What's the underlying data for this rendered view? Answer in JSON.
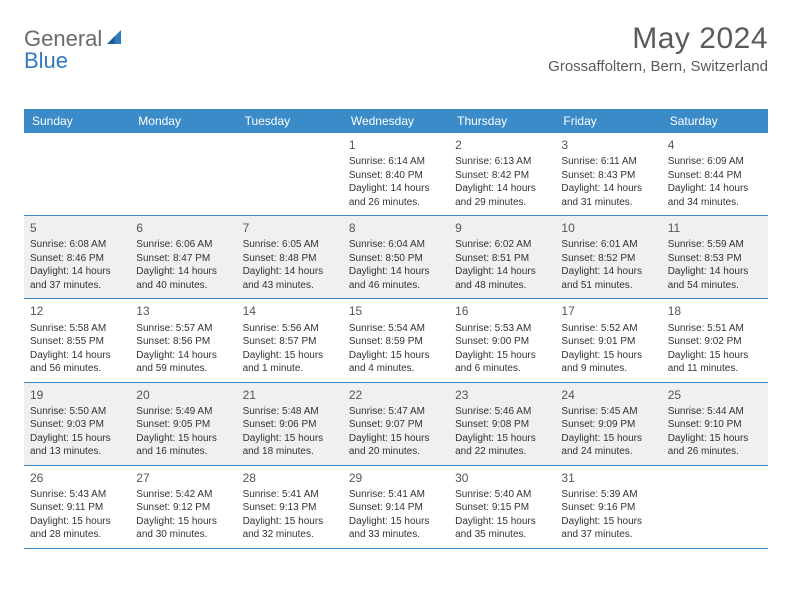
{
  "logo": {
    "general": "General",
    "blue": "Blue"
  },
  "title": "May 2024",
  "location": "Grossaffoltern, Bern, Switzerland",
  "weekdays": [
    "Sunday",
    "Monday",
    "Tuesday",
    "Wednesday",
    "Thursday",
    "Friday",
    "Saturday"
  ],
  "header_bg": "#3b8bc9",
  "shaded_bg": "#eef0f1",
  "border_color": "#3b8bc9",
  "weeks": [
    {
      "shaded": false,
      "days": [
        {
          "num": "",
          "sunrise": "",
          "sunset": "",
          "daylight1": "",
          "daylight2": ""
        },
        {
          "num": "",
          "sunrise": "",
          "sunset": "",
          "daylight1": "",
          "daylight2": ""
        },
        {
          "num": "",
          "sunrise": "",
          "sunset": "",
          "daylight1": "",
          "daylight2": ""
        },
        {
          "num": "1",
          "sunrise": "Sunrise: 6:14 AM",
          "sunset": "Sunset: 8:40 PM",
          "daylight1": "Daylight: 14 hours",
          "daylight2": "and 26 minutes."
        },
        {
          "num": "2",
          "sunrise": "Sunrise: 6:13 AM",
          "sunset": "Sunset: 8:42 PM",
          "daylight1": "Daylight: 14 hours",
          "daylight2": "and 29 minutes."
        },
        {
          "num": "3",
          "sunrise": "Sunrise: 6:11 AM",
          "sunset": "Sunset: 8:43 PM",
          "daylight1": "Daylight: 14 hours",
          "daylight2": "and 31 minutes."
        },
        {
          "num": "4",
          "sunrise": "Sunrise: 6:09 AM",
          "sunset": "Sunset: 8:44 PM",
          "daylight1": "Daylight: 14 hours",
          "daylight2": "and 34 minutes."
        }
      ]
    },
    {
      "shaded": true,
      "days": [
        {
          "num": "5",
          "sunrise": "Sunrise: 6:08 AM",
          "sunset": "Sunset: 8:46 PM",
          "daylight1": "Daylight: 14 hours",
          "daylight2": "and 37 minutes."
        },
        {
          "num": "6",
          "sunrise": "Sunrise: 6:06 AM",
          "sunset": "Sunset: 8:47 PM",
          "daylight1": "Daylight: 14 hours",
          "daylight2": "and 40 minutes."
        },
        {
          "num": "7",
          "sunrise": "Sunrise: 6:05 AM",
          "sunset": "Sunset: 8:48 PM",
          "daylight1": "Daylight: 14 hours",
          "daylight2": "and 43 minutes."
        },
        {
          "num": "8",
          "sunrise": "Sunrise: 6:04 AM",
          "sunset": "Sunset: 8:50 PM",
          "daylight1": "Daylight: 14 hours",
          "daylight2": "and 46 minutes."
        },
        {
          "num": "9",
          "sunrise": "Sunrise: 6:02 AM",
          "sunset": "Sunset: 8:51 PM",
          "daylight1": "Daylight: 14 hours",
          "daylight2": "and 48 minutes."
        },
        {
          "num": "10",
          "sunrise": "Sunrise: 6:01 AM",
          "sunset": "Sunset: 8:52 PM",
          "daylight1": "Daylight: 14 hours",
          "daylight2": "and 51 minutes."
        },
        {
          "num": "11",
          "sunrise": "Sunrise: 5:59 AM",
          "sunset": "Sunset: 8:53 PM",
          "daylight1": "Daylight: 14 hours",
          "daylight2": "and 54 minutes."
        }
      ]
    },
    {
      "shaded": false,
      "days": [
        {
          "num": "12",
          "sunrise": "Sunrise: 5:58 AM",
          "sunset": "Sunset: 8:55 PM",
          "daylight1": "Daylight: 14 hours",
          "daylight2": "and 56 minutes."
        },
        {
          "num": "13",
          "sunrise": "Sunrise: 5:57 AM",
          "sunset": "Sunset: 8:56 PM",
          "daylight1": "Daylight: 14 hours",
          "daylight2": "and 59 minutes."
        },
        {
          "num": "14",
          "sunrise": "Sunrise: 5:56 AM",
          "sunset": "Sunset: 8:57 PM",
          "daylight1": "Daylight: 15 hours",
          "daylight2": "and 1 minute."
        },
        {
          "num": "15",
          "sunrise": "Sunrise: 5:54 AM",
          "sunset": "Sunset: 8:59 PM",
          "daylight1": "Daylight: 15 hours",
          "daylight2": "and 4 minutes."
        },
        {
          "num": "16",
          "sunrise": "Sunrise: 5:53 AM",
          "sunset": "Sunset: 9:00 PM",
          "daylight1": "Daylight: 15 hours",
          "daylight2": "and 6 minutes."
        },
        {
          "num": "17",
          "sunrise": "Sunrise: 5:52 AM",
          "sunset": "Sunset: 9:01 PM",
          "daylight1": "Daylight: 15 hours",
          "daylight2": "and 9 minutes."
        },
        {
          "num": "18",
          "sunrise": "Sunrise: 5:51 AM",
          "sunset": "Sunset: 9:02 PM",
          "daylight1": "Daylight: 15 hours",
          "daylight2": "and 11 minutes."
        }
      ]
    },
    {
      "shaded": true,
      "days": [
        {
          "num": "19",
          "sunrise": "Sunrise: 5:50 AM",
          "sunset": "Sunset: 9:03 PM",
          "daylight1": "Daylight: 15 hours",
          "daylight2": "and 13 minutes."
        },
        {
          "num": "20",
          "sunrise": "Sunrise: 5:49 AM",
          "sunset": "Sunset: 9:05 PM",
          "daylight1": "Daylight: 15 hours",
          "daylight2": "and 16 minutes."
        },
        {
          "num": "21",
          "sunrise": "Sunrise: 5:48 AM",
          "sunset": "Sunset: 9:06 PM",
          "daylight1": "Daylight: 15 hours",
          "daylight2": "and 18 minutes."
        },
        {
          "num": "22",
          "sunrise": "Sunrise: 5:47 AM",
          "sunset": "Sunset: 9:07 PM",
          "daylight1": "Daylight: 15 hours",
          "daylight2": "and 20 minutes."
        },
        {
          "num": "23",
          "sunrise": "Sunrise: 5:46 AM",
          "sunset": "Sunset: 9:08 PM",
          "daylight1": "Daylight: 15 hours",
          "daylight2": "and 22 minutes."
        },
        {
          "num": "24",
          "sunrise": "Sunrise: 5:45 AM",
          "sunset": "Sunset: 9:09 PM",
          "daylight1": "Daylight: 15 hours",
          "daylight2": "and 24 minutes."
        },
        {
          "num": "25",
          "sunrise": "Sunrise: 5:44 AM",
          "sunset": "Sunset: 9:10 PM",
          "daylight1": "Daylight: 15 hours",
          "daylight2": "and 26 minutes."
        }
      ]
    },
    {
      "shaded": false,
      "days": [
        {
          "num": "26",
          "sunrise": "Sunrise: 5:43 AM",
          "sunset": "Sunset: 9:11 PM",
          "daylight1": "Daylight: 15 hours",
          "daylight2": "and 28 minutes."
        },
        {
          "num": "27",
          "sunrise": "Sunrise: 5:42 AM",
          "sunset": "Sunset: 9:12 PM",
          "daylight1": "Daylight: 15 hours",
          "daylight2": "and 30 minutes."
        },
        {
          "num": "28",
          "sunrise": "Sunrise: 5:41 AM",
          "sunset": "Sunset: 9:13 PM",
          "daylight1": "Daylight: 15 hours",
          "daylight2": "and 32 minutes."
        },
        {
          "num": "29",
          "sunrise": "Sunrise: 5:41 AM",
          "sunset": "Sunset: 9:14 PM",
          "daylight1": "Daylight: 15 hours",
          "daylight2": "and 33 minutes."
        },
        {
          "num": "30",
          "sunrise": "Sunrise: 5:40 AM",
          "sunset": "Sunset: 9:15 PM",
          "daylight1": "Daylight: 15 hours",
          "daylight2": "and 35 minutes."
        },
        {
          "num": "31",
          "sunrise": "Sunrise: 5:39 AM",
          "sunset": "Sunset: 9:16 PM",
          "daylight1": "Daylight: 15 hours",
          "daylight2": "and 37 minutes."
        },
        {
          "num": "",
          "sunrise": "",
          "sunset": "",
          "daylight1": "",
          "daylight2": ""
        }
      ]
    }
  ]
}
